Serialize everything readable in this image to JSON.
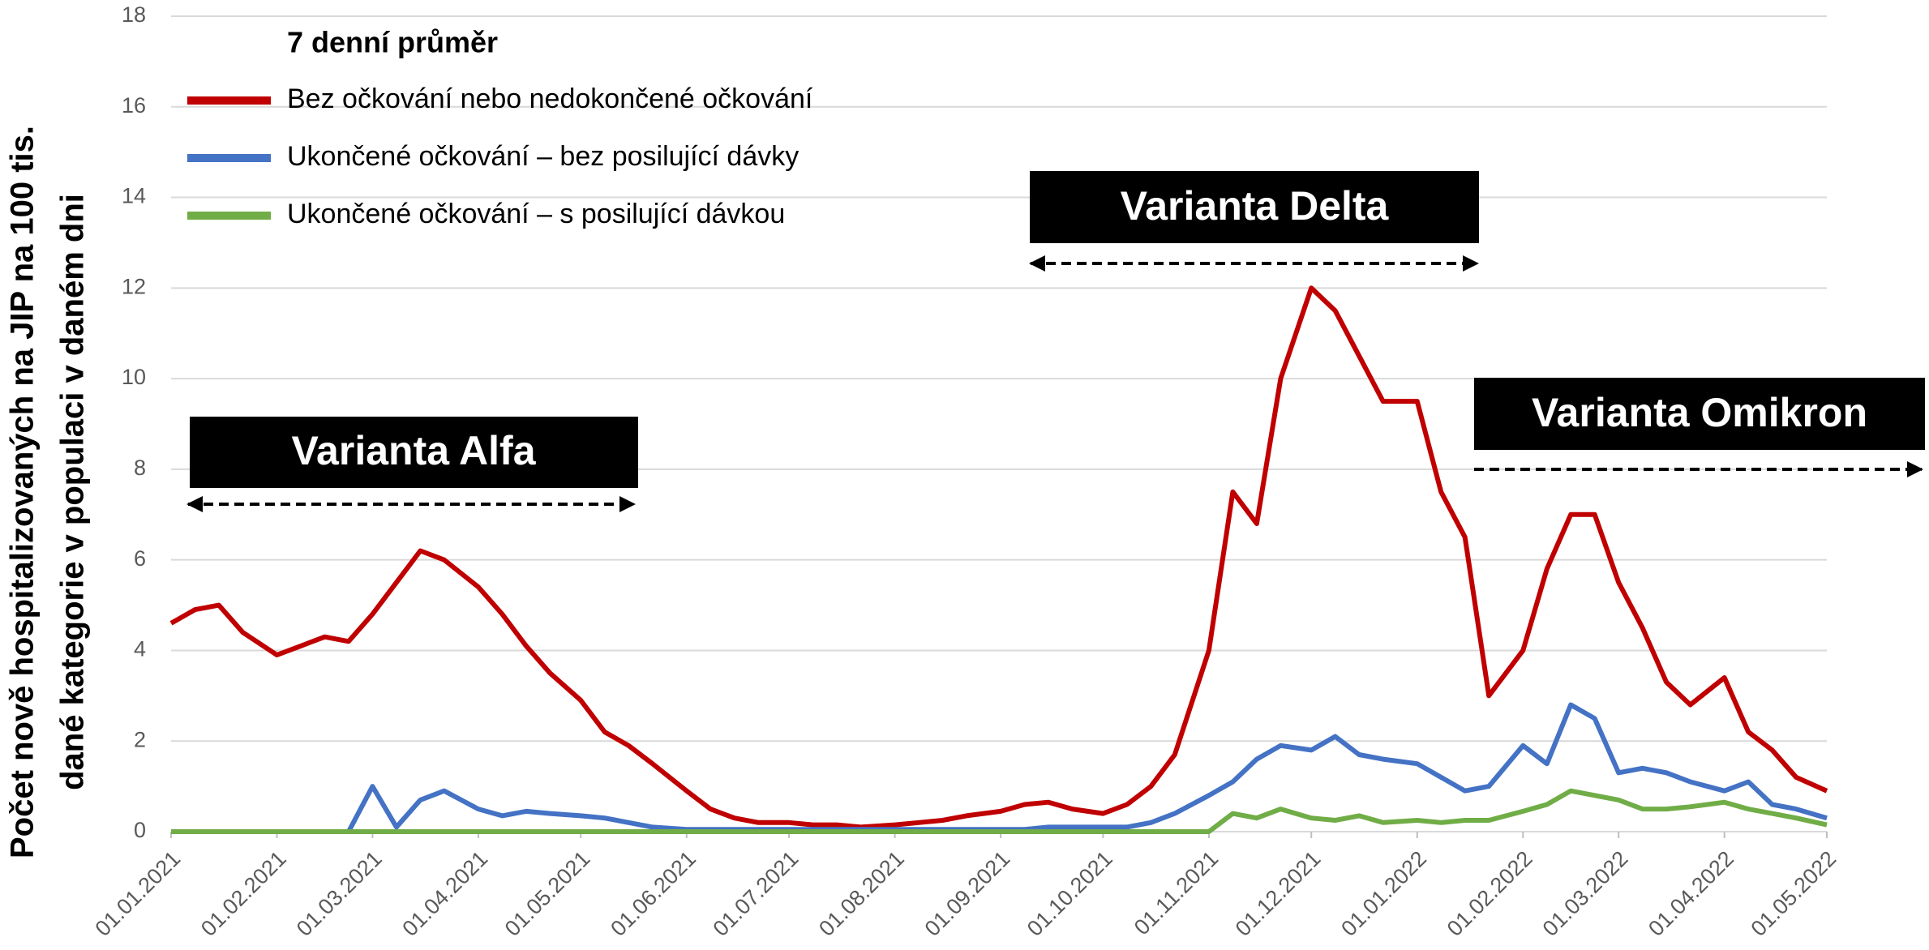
{
  "chart_data": {
    "type": "line",
    "legend_title": "7 denní průměr",
    "ylabel": [
      "Počet nově hospitalizovaných na JIP na 100 tis.",
      "dané kategorie v populaci v daném dni"
    ],
    "annotations": [
      "Varianta Alfa",
      "Varianta Delta",
      "Varianta Omikron"
    ],
    "x": [
      "2021-01-01",
      "2021-01-08",
      "2021-01-15",
      "2021-01-22",
      "2021-02-01",
      "2021-02-08",
      "2021-02-15",
      "2021-02-22",
      "2021-03-01",
      "2021-03-08",
      "2021-03-15",
      "2021-03-22",
      "2021-04-01",
      "2021-04-08",
      "2021-04-15",
      "2021-04-22",
      "2021-05-01",
      "2021-05-08",
      "2021-05-15",
      "2021-05-22",
      "2021-06-01",
      "2021-06-08",
      "2021-06-15",
      "2021-06-22",
      "2021-07-01",
      "2021-07-08",
      "2021-07-15",
      "2021-07-22",
      "2021-08-01",
      "2021-08-08",
      "2021-08-15",
      "2021-08-22",
      "2021-09-01",
      "2021-09-08",
      "2021-09-15",
      "2021-09-22",
      "2021-10-01",
      "2021-10-08",
      "2021-10-15",
      "2021-10-22",
      "2021-11-01",
      "2021-11-08",
      "2021-11-15",
      "2021-11-22",
      "2021-12-01",
      "2021-12-08",
      "2021-12-15",
      "2021-12-22",
      "2022-01-01",
      "2022-01-08",
      "2022-01-15",
      "2022-01-22",
      "2022-02-01",
      "2022-02-08",
      "2022-02-15",
      "2022-02-22",
      "2022-03-01",
      "2022-03-08",
      "2022-03-15",
      "2022-03-22",
      "2022-04-01",
      "2022-04-08",
      "2022-04-15",
      "2022-04-22",
      "2022-05-01"
    ],
    "series": [
      {
        "name": "Bez očkování nebo nedokončené očkování",
        "color": "#c00000",
        "values": [
          4.6,
          4.9,
          5.0,
          4.4,
          3.9,
          4.1,
          4.3,
          4.2,
          4.8,
          5.5,
          6.2,
          6.0,
          5.4,
          4.8,
          4.1,
          3.5,
          2.9,
          2.2,
          1.9,
          1.5,
          0.9,
          0.5,
          0.3,
          0.2,
          0.2,
          0.15,
          0.15,
          0.1,
          0.15,
          0.2,
          0.25,
          0.35,
          0.45,
          0.6,
          0.65,
          0.5,
          0.4,
          0.6,
          1.0,
          1.7,
          4.0,
          7.5,
          6.8,
          10.0,
          12.0,
          11.5,
          10.5,
          9.5,
          9.5,
          7.5,
          6.5,
          3.0,
          4.0,
          5.8,
          7.0,
          7.0,
          5.5,
          4.5,
          3.3,
          2.8,
          3.4,
          2.2,
          1.8,
          1.2,
          0.9
        ]
      },
      {
        "name": "Ukončené očkování – bez posilující dávky",
        "color": "#4472c4",
        "values": [
          0,
          0,
          0,
          0,
          0,
          0,
          0,
          0,
          1.0,
          0.1,
          0.7,
          0.9,
          0.5,
          0.35,
          0.45,
          0.4,
          0.35,
          0.3,
          0.2,
          0.1,
          0.05,
          0.05,
          0.05,
          0.05,
          0.05,
          0.05,
          0.05,
          0.05,
          0.05,
          0.05,
          0.05,
          0.05,
          0.05,
          0.05,
          0.1,
          0.1,
          0.1,
          0.1,
          0.2,
          0.4,
          0.8,
          1.1,
          1.6,
          1.9,
          1.8,
          2.1,
          1.7,
          1.6,
          1.5,
          1.2,
          0.9,
          1.0,
          1.9,
          1.5,
          2.8,
          2.5,
          1.3,
          1.4,
          1.3,
          1.1,
          0.9,
          1.1,
          0.6,
          0.5,
          0.3
        ]
      },
      {
        "name": "Ukončené očkování – s posilující dávkou",
        "color": "#70ad47",
        "values": [
          0,
          0,
          0,
          0,
          0,
          0,
          0,
          0,
          0,
          0,
          0,
          0,
          0,
          0,
          0,
          0,
          0,
          0,
          0,
          0,
          0,
          0,
          0,
          0,
          0,
          0,
          0,
          0,
          0,
          0,
          0,
          0,
          0,
          0,
          0,
          0,
          0,
          0,
          0,
          0,
          0,
          0.4,
          0.3,
          0.5,
          0.3,
          0.25,
          0.35,
          0.2,
          0.25,
          0.2,
          0.25,
          0.25,
          0.45,
          0.6,
          0.9,
          0.8,
          0.7,
          0.5,
          0.5,
          0.55,
          0.65,
          0.5,
          0.4,
          0.3,
          0.15
        ]
      }
    ],
    "xlim": [
      "2021-01-01",
      "2022-05-01"
    ],
    "xticks": [
      {
        "value": "2021-01-01",
        "label": "01.01.2021"
      },
      {
        "value": "2021-02-01",
        "label": "01.02.2021"
      },
      {
        "value": "2021-03-01",
        "label": "01.03.2021"
      },
      {
        "value": "2021-04-01",
        "label": "01.04.2021"
      },
      {
        "value": "2021-05-01",
        "label": "01.05.2021"
      },
      {
        "value": "2021-06-01",
        "label": "01.06.2021"
      },
      {
        "value": "2021-07-01",
        "label": "01.07.2021"
      },
      {
        "value": "2021-08-01",
        "label": "01.08.2021"
      },
      {
        "value": "2021-09-01",
        "label": "01.09.2021"
      },
      {
        "value": "2021-10-01",
        "label": "01.10.2021"
      },
      {
        "value": "2021-11-01",
        "label": "01.11.2021"
      },
      {
        "value": "2021-12-01",
        "label": "01.12.2021"
      },
      {
        "value": "2022-01-01",
        "label": "01.01.2022"
      },
      {
        "value": "2022-02-01",
        "label": "01.02.2022"
      },
      {
        "value": "2022-03-01",
        "label": "01.03.2022"
      },
      {
        "value": "2022-04-01",
        "label": "01.04.2022"
      },
      {
        "value": "2022-05-01",
        "label": "01.05.2022"
      }
    ],
    "ylim": [
      0,
      18
    ],
    "yticks": [
      0,
      2,
      4,
      6,
      8,
      10,
      12,
      14,
      16,
      18
    ],
    "grid": true
  }
}
